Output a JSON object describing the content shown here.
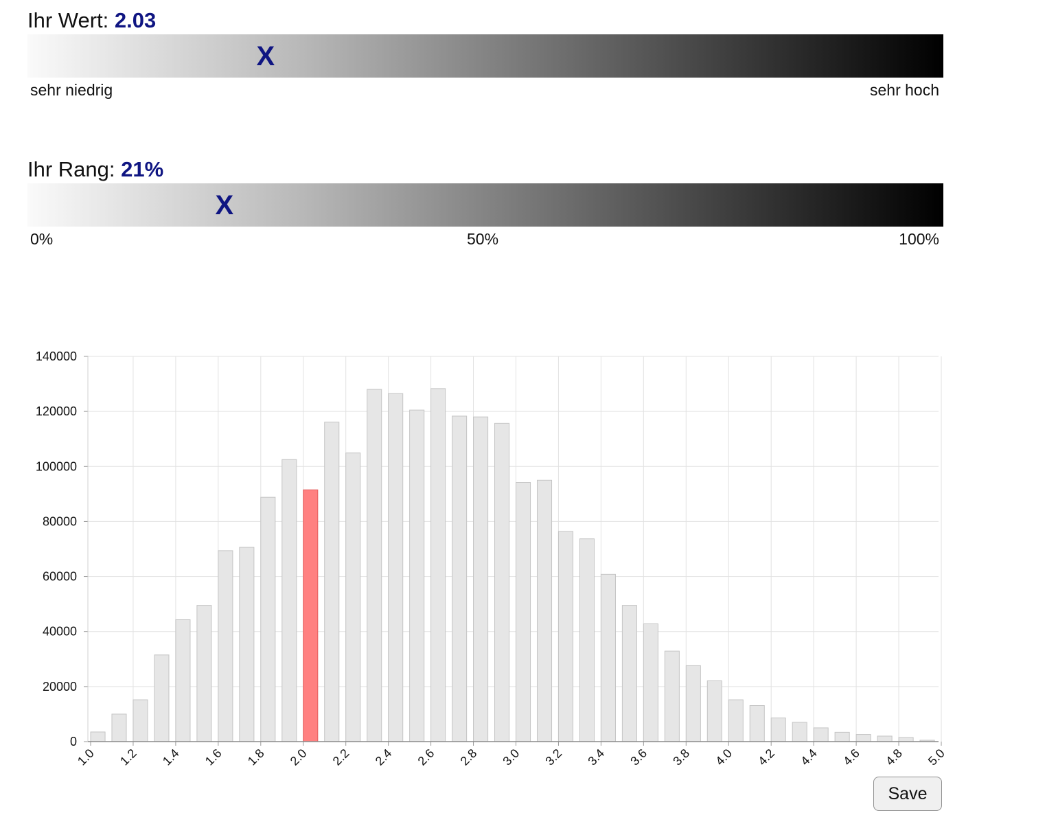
{
  "value_scale": {
    "label": "Ihr Wert:",
    "value": "2.03",
    "marker": "X",
    "marker_fraction": 0.26,
    "min_label": "sehr niedrig",
    "max_label": "sehr hoch"
  },
  "rank_scale": {
    "label": "Ihr Rang:",
    "value": "21%",
    "marker": "X",
    "marker_fraction": 0.215,
    "labels": [
      "0%",
      "50%",
      "100%"
    ]
  },
  "save_label": "Save",
  "colors": {
    "marker": "#0f1582",
    "bar": "#e6e6e6",
    "bar_border": "#c4c4c4",
    "highlight": "#ff8080",
    "highlight_border": "#e25a5a",
    "grid": "#e2e2e2"
  },
  "chart_data": {
    "type": "bar",
    "title": "",
    "xlabel": "",
    "ylabel": "",
    "ylim": [
      0,
      140000
    ],
    "yticks": [
      "0",
      "20000",
      "40000",
      "60000",
      "80000",
      "100000",
      "120000",
      "140000"
    ],
    "xticks": [
      "1.0",
      "1.2",
      "1.4",
      "1.6",
      "1.8",
      "2.0",
      "2.2",
      "2.4",
      "2.6",
      "2.8",
      "3.0",
      "3.2",
      "3.4",
      "3.6",
      "3.8",
      "4.0",
      "4.2",
      "4.4",
      "4.6",
      "4.8",
      "5.0"
    ],
    "highlight_index": 10,
    "grid": true,
    "legend": "none",
    "values": [
      3500,
      10000,
      15200,
      31500,
      44300,
      49500,
      69400,
      70600,
      88800,
      102500,
      91500,
      116100,
      104900,
      128000,
      126500,
      120500,
      128300,
      118300,
      118000,
      115700,
      94200,
      95000,
      76400,
      73700,
      60800,
      49500,
      42800,
      32900,
      27600,
      22100,
      15200,
      13100,
      8600,
      7000,
      5000,
      3400,
      2600,
      2000,
      1500,
      500
    ]
  }
}
